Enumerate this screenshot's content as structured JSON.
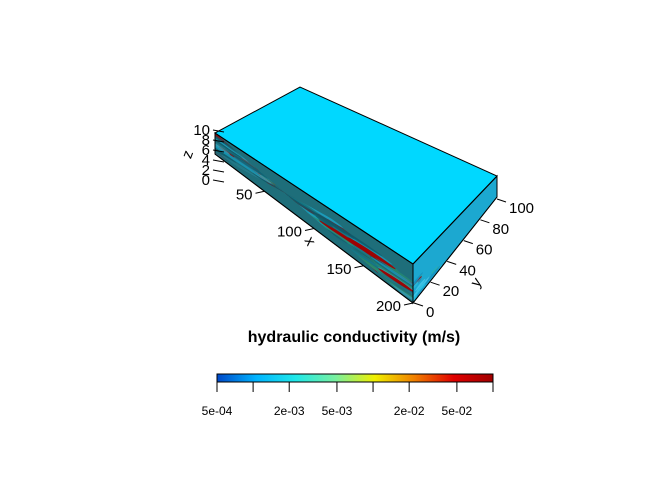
{
  "chart_data": {
    "type": "heatmap",
    "title": "",
    "colorbar": {
      "title": "hydraulic conductivity (m/s)",
      "scale": "log",
      "range": [
        0.0005,
        0.1
      ],
      "tick_labels": [
        "5e-04",
        "2e-03",
        "5e-03",
        "2e-02",
        "5e-02"
      ],
      "tick_values": [
        0.0005,
        0.002,
        0.005,
        0.02,
        0.05
      ],
      "colors": [
        "#0048c8",
        "#00b4ff",
        "#20e8e8",
        "#78f0a0",
        "#f0f000",
        "#f08000",
        "#e00000",
        "#a00000"
      ]
    },
    "block": {
      "x": {
        "label": "x",
        "range": [
          0,
          200
        ],
        "ticks": [
          50,
          100,
          150,
          200
        ]
      },
      "y": {
        "label": "y",
        "range": [
          0,
          100
        ],
        "ticks": [
          0,
          20,
          40,
          60,
          80,
          100
        ]
      },
      "z": {
        "label": "z",
        "range": [
          0,
          10
        ],
        "ticks": [
          0,
          2,
          4,
          6,
          8,
          10
        ]
      },
      "top_face_color": "#00d8ff",
      "front_face_base_color": "#1e6e7a",
      "side_face_base_color": "#1ca8d0",
      "high_k_color": "#a00000"
    }
  }
}
